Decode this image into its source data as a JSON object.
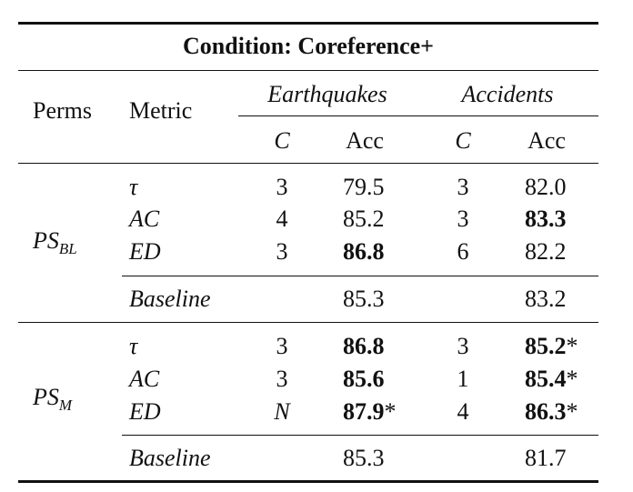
{
  "title": "Condition: Coreference+",
  "header": {
    "perms": "Perms",
    "metric": "Metric",
    "group1": "Earthquakes",
    "group2": "Accidents",
    "c": "C",
    "acc": "Acc"
  },
  "sections": [
    {
      "perm_main": "PS",
      "perm_sub": "BL",
      "rows": [
        {
          "metric": "τ",
          "c1": "3",
          "acc1": "79.5",
          "c2": "3",
          "acc2": "82.0"
        },
        {
          "metric": "AC",
          "c1": "4",
          "acc1": "85.2",
          "c2": "3",
          "acc2": "83.3"
        },
        {
          "metric": "ED",
          "c1": "3",
          "acc1": "86.8",
          "c2": "6",
          "acc2": "82.2"
        }
      ],
      "baseline": {
        "label": "Baseline",
        "acc1": "85.3",
        "acc2": "83.2"
      }
    },
    {
      "perm_main": "PS",
      "perm_sub": "M",
      "rows": [
        {
          "metric": "τ",
          "c1": "3",
          "acc1": "86.8",
          "c2": "3",
          "acc2": "85.2"
        },
        {
          "metric": "AC",
          "c1": "3",
          "acc1": "85.6",
          "c2": "1",
          "acc2": "85.4"
        },
        {
          "metric": "ED",
          "c1": "N",
          "acc1": "87.9",
          "c2": "4",
          "acc2": "86.3"
        }
      ],
      "baseline": {
        "label": "Baseline",
        "acc1": "85.3",
        "acc2": "81.7"
      }
    }
  ],
  "significance_marker": "*"
}
